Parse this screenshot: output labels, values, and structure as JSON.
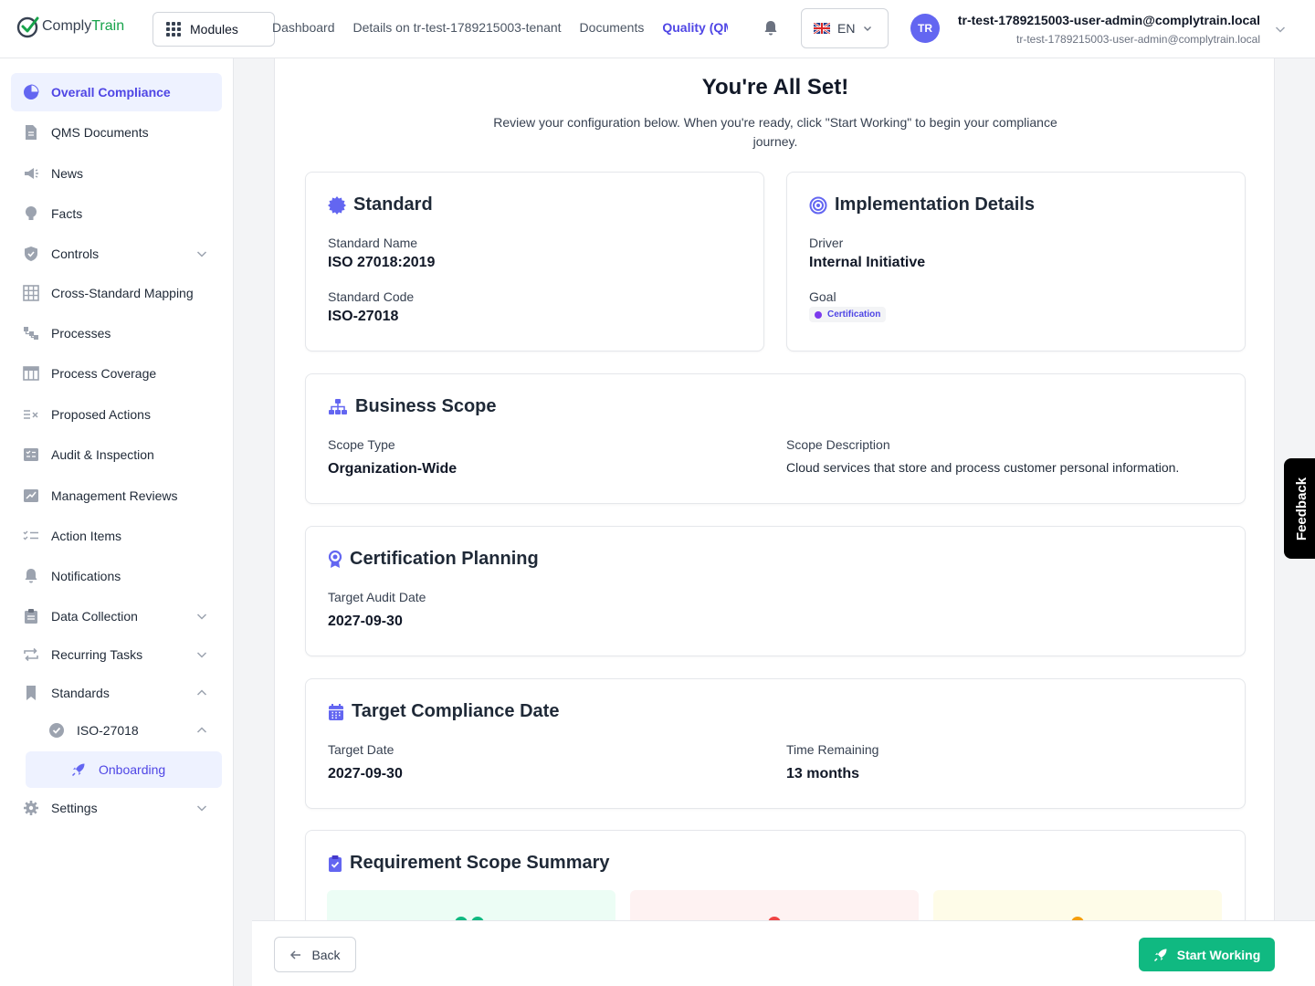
{
  "header": {
    "logo_prefix": "Comply",
    "logo_suffix": "Train",
    "modules_label": "Modules",
    "nav": [
      "Dashboard",
      "Details on tr-test-1789215003-tenant",
      "Documents",
      "Quality (QMS)"
    ],
    "language": "EN",
    "avatar_initials": "TR",
    "user_name": "tr-test-1789215003-user-admin@complytrain.local",
    "user_email": "tr-test-1789215003-user-admin@complytrain.local"
  },
  "sidebar": {
    "items": [
      {
        "label": "Overall Compliance",
        "icon": "pie-chart-icon"
      },
      {
        "label": "QMS Documents",
        "icon": "document-icon"
      },
      {
        "label": "News",
        "icon": "megaphone-icon"
      },
      {
        "label": "Facts",
        "icon": "lightbulb-icon"
      },
      {
        "label": "Controls",
        "icon": "shield-icon"
      },
      {
        "label": "Cross-Standard Mapping",
        "icon": "table-grid-icon"
      },
      {
        "label": "Processes",
        "icon": "flow-icon"
      },
      {
        "label": "Process Coverage",
        "icon": "table-icon"
      },
      {
        "label": "Proposed Actions",
        "icon": "list-x-icon"
      },
      {
        "label": "Audit & Inspection",
        "icon": "checklist-icon"
      },
      {
        "label": "Management Reviews",
        "icon": "chart-edit-icon"
      },
      {
        "label": "Action Items",
        "icon": "list-check-icon"
      },
      {
        "label": "Notifications",
        "icon": "bell-icon"
      },
      {
        "label": "Data Collection",
        "icon": "clipboard-icon"
      },
      {
        "label": "Recurring Tasks",
        "icon": "repeat-icon"
      },
      {
        "label": "Standards",
        "icon": "bookmark-icon"
      },
      {
        "label": "ISO-27018",
        "icon": "badge-check-icon"
      },
      {
        "label": "Onboarding",
        "icon": "rocket-icon"
      },
      {
        "label": "Settings",
        "icon": "gear-icon"
      }
    ]
  },
  "page": {
    "title": "You're All Set!",
    "subtitle": "Review your configuration below. When you're ready, click \"Start Working\" to begin your compliance journey."
  },
  "standard": {
    "heading": "Standard",
    "name_label": "Standard Name",
    "name": "ISO 27018:2019",
    "code_label": "Standard Code",
    "code": "ISO-27018"
  },
  "implementation": {
    "heading": "Implementation Details",
    "driver_label": "Driver",
    "driver": "Internal Initiative",
    "goal_label": "Goal",
    "goal": "Certification"
  },
  "scope": {
    "heading": "Business Scope",
    "type_label": "Scope Type",
    "type": "Organization-Wide",
    "desc_label": "Scope Description",
    "desc": "Cloud services that store and process customer personal information."
  },
  "certification": {
    "heading": "Certification Planning",
    "audit_label": "Target Audit Date",
    "audit_date": "2027-09-30"
  },
  "target": {
    "heading": "Target Compliance Date",
    "date_label": "Target Date",
    "date": "2027-09-30",
    "remaining_label": "Time Remaining",
    "remaining": "13 months"
  },
  "requirements": {
    "heading": "Requirement Scope Summary"
  },
  "footer": {
    "back_label": "Back",
    "start_label": "Start Working"
  },
  "feedback_label": "Feedback",
  "colors": {
    "accent": "#4f46e5",
    "success": "#10b981",
    "brand_green": "#16a34a"
  }
}
